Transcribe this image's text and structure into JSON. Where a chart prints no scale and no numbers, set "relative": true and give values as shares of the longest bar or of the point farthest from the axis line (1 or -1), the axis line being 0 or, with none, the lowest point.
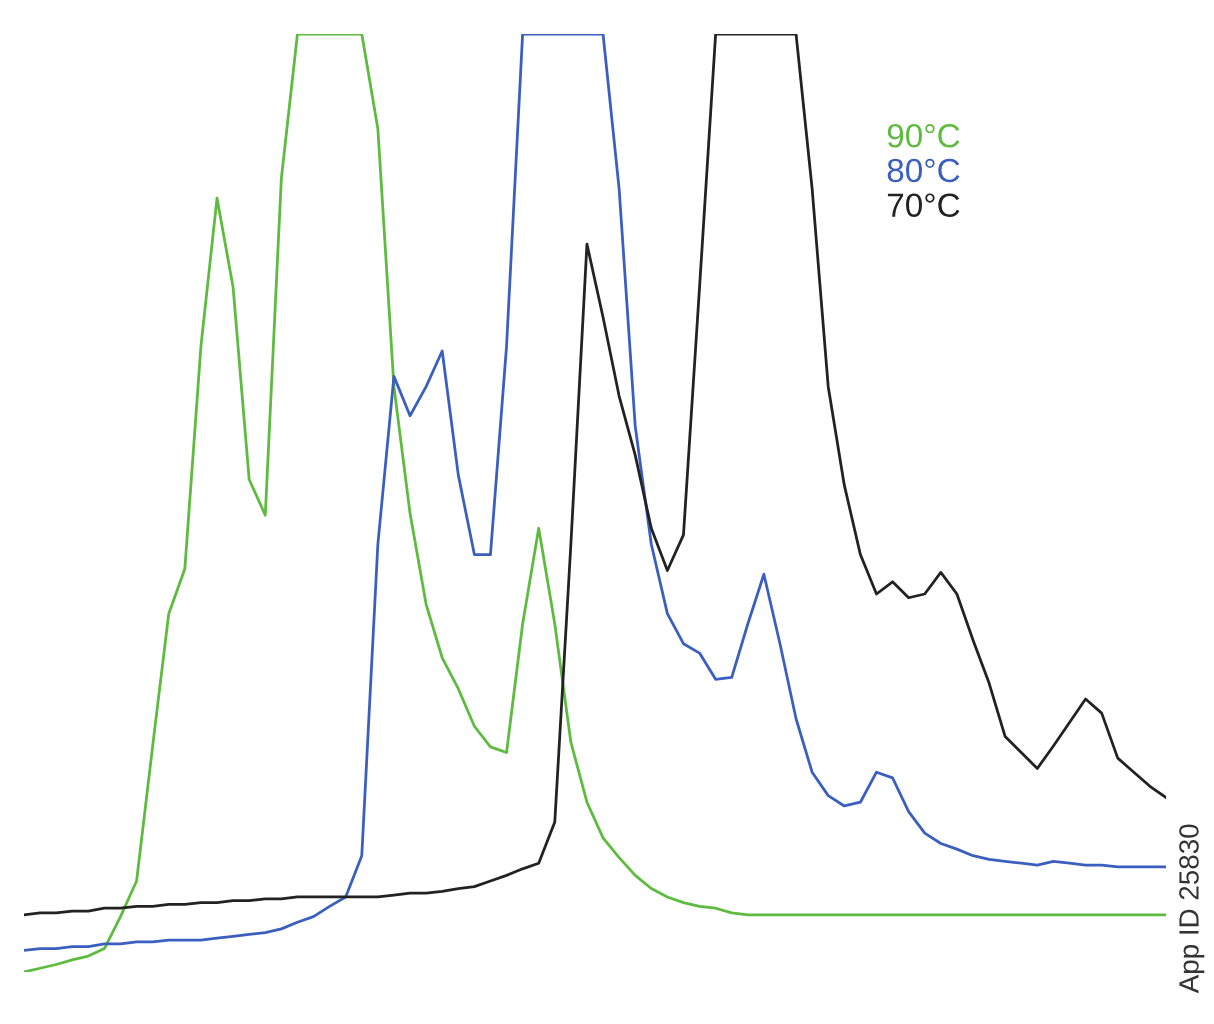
{
  "chart_data": {
    "type": "line",
    "relative": true,
    "categories": [
      null,
      null,
      null,
      null,
      null,
      null,
      null,
      null,
      null,
      null,
      null,
      null,
      null,
      null,
      null,
      null,
      null,
      null,
      null,
      null,
      null,
      null,
      null,
      null,
      null,
      null,
      null,
      null,
      null,
      null,
      null,
      null,
      null,
      null,
      null,
      null,
      null,
      null,
      null,
      null,
      null,
      null,
      null,
      null,
      null,
      null,
      null,
      null,
      null,
      null,
      null,
      null,
      null,
      null,
      null,
      null,
      null,
      null,
      null,
      null,
      null,
      null,
      null,
      null,
      null,
      null,
      null,
      null,
      null,
      null,
      null,
      null
    ],
    "series": [
      {
        "name": "90°C",
        "color": "#5dbb3f",
        "values": [
          0,
          0.004,
          0.008,
          0.013,
          0.017,
          0.025,
          0.059,
          0.097,
          0.241,
          0.382,
          0.43,
          0.667,
          0.825,
          0.73,
          0.525,
          0.487,
          0.846,
          1,
          1,
          1,
          1,
          1,
          0.899,
          0.624,
          0.489,
          0.392,
          0.335,
          0.302,
          0.262,
          0.24,
          0.234,
          0.371,
          0.473,
          0.371,
          0.245,
          0.181,
          0.143,
          0.122,
          0.103,
          0.089,
          0.08,
          0.074,
          0.07,
          0.068,
          0.063,
          0.061,
          0.061,
          0.061,
          0.061,
          0.061,
          0.061,
          0.061,
          0.061,
          0.061,
          0.061,
          0.061,
          0.061,
          0.061,
          0.061,
          0.061,
          0.061,
          0.061,
          0.061,
          0.061,
          0.061,
          0.061,
          0.061,
          0.061,
          0.061,
          0.061,
          0.061,
          0.061
        ]
      },
      {
        "name": "80°C",
        "color": "#3a5fbf",
        "values": [
          0.023,
          0.025,
          0.025,
          0.027,
          0.027,
          0.03,
          0.03,
          0.032,
          0.032,
          0.034,
          0.034,
          0.034,
          0.036,
          0.038,
          0.04,
          0.042,
          0.046,
          0.053,
          0.059,
          0.07,
          0.08,
          0.124,
          0.456,
          0.635,
          0.593,
          0.624,
          0.662,
          0.53,
          0.445,
          0.445,
          0.667,
          1,
          1,
          1,
          1,
          1,
          1,
          0.835,
          0.582,
          0.456,
          0.382,
          0.35,
          0.34,
          0.312,
          0.314,
          0.371,
          0.424,
          0.35,
          0.27,
          0.213,
          0.188,
          0.177,
          0.181,
          0.213,
          0.207,
          0.171,
          0.148,
          0.137,
          0.131,
          0.124,
          0.12,
          0.118,
          0.116,
          0.114,
          0.118,
          0.116,
          0.114,
          0.114,
          0.112,
          0.112,
          0.112,
          0.112
        ]
      },
      {
        "name": "70°C",
        "color": "#222222",
        "values": [
          0.061,
          0.063,
          0.063,
          0.065,
          0.065,
          0.068,
          0.068,
          0.07,
          0.07,
          0.072,
          0.072,
          0.074,
          0.074,
          0.076,
          0.076,
          0.078,
          0.078,
          0.08,
          0.08,
          0.08,
          0.08,
          0.08,
          0.08,
          0.082,
          0.084,
          0.084,
          0.086,
          0.089,
          0.091,
          0.097,
          0.103,
          0.11,
          0.116,
          0.16,
          0.456,
          0.776,
          0.698,
          0.614,
          0.551,
          0.473,
          0.428,
          0.466,
          0.73,
          1,
          1,
          1,
          1,
          1,
          1,
          0.835,
          0.624,
          0.519,
          0.445,
          0.403,
          0.416,
          0.399,
          0.403,
          0.426,
          0.403,
          0.354,
          0.308,
          0.251,
          0.234,
          0.217,
          0.241,
          0.266,
          0.291,
          0.276,
          0.228,
          0.213,
          0.198,
          0.186
        ]
      }
    ],
    "annotations": [
      "App ID 25830"
    ]
  }
}
